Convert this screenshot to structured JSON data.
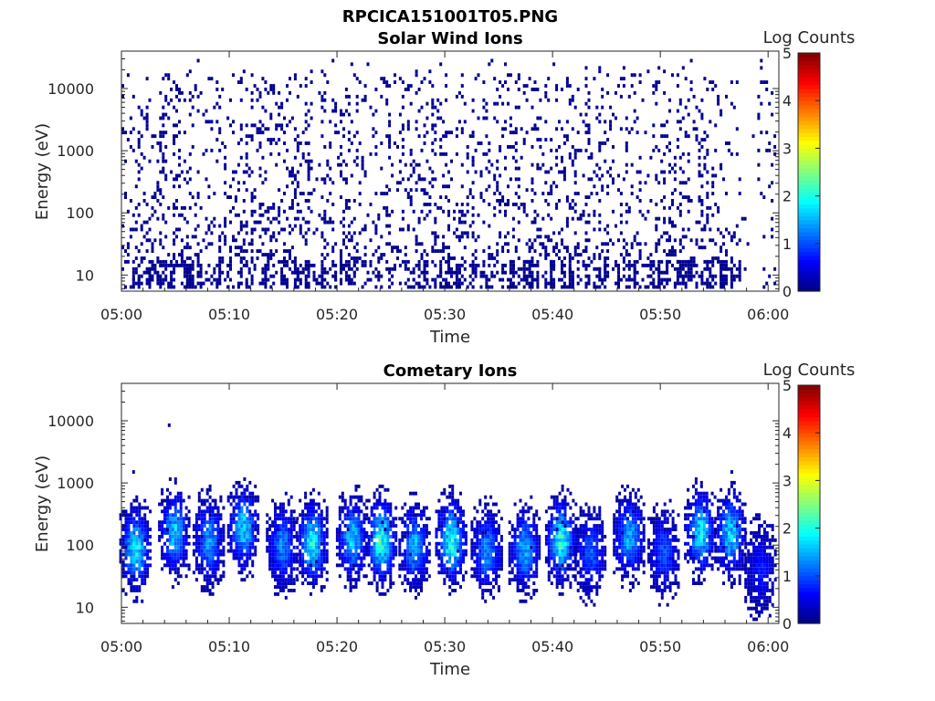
{
  "figure_title": "RPCICA151001T05.PNG",
  "chart_data": [
    {
      "type": "heatmap",
      "title": "Solar Wind Ions",
      "xlabel": "Time",
      "ylabel": "Energy (eV)",
      "x_ticks": [
        "05:00",
        "05:10",
        "05:20",
        "05:30",
        "05:40",
        "05:50",
        "06:00"
      ],
      "x_range_minutes": [
        0,
        61
      ],
      "y_scale": "log",
      "y_range": [
        5.5,
        40000
      ],
      "y_ticks": [
        10,
        100,
        1000,
        10000
      ],
      "y_tick_labels": [
        "10",
        "100",
        "1000",
        "10000"
      ],
      "colorbar": {
        "label": "Log Counts",
        "min": 0,
        "max": 5,
        "ticks": [
          "0",
          "1",
          "2",
          "3",
          "4",
          "5"
        ],
        "colormap": "jet"
      },
      "description_values": {
        "typical_log_counts": 0.1,
        "data_end_minute": 57.5,
        "sparse_energy_range": [
          6,
          25000
        ]
      }
    },
    {
      "type": "heatmap",
      "title": "Cometary Ions",
      "xlabel": "Time",
      "ylabel": "Energy (eV)",
      "x_ticks": [
        "05:00",
        "05:10",
        "05:20",
        "05:30",
        "05:40",
        "05:50",
        "06:00"
      ],
      "x_range_minutes": [
        0,
        61
      ],
      "y_scale": "log",
      "y_range": [
        5.5,
        40000
      ],
      "y_ticks": [
        10,
        100,
        1000,
        10000
      ],
      "y_tick_labels": [
        "10",
        "100",
        "1000",
        "10000"
      ],
      "colorbar": {
        "label": "Log Counts",
        "min": 0,
        "max": 5,
        "ticks": [
          "0",
          "1",
          "2",
          "3",
          "4",
          "5"
        ],
        "colormap": "jet"
      },
      "bursts": [
        {
          "t": 1.2,
          "peak_e": 80,
          "peak_c": 1.7
        },
        {
          "t": 4.8,
          "peak_e": 150,
          "peak_c": 1.5
        },
        {
          "t": 8.0,
          "peak_e": 110,
          "peak_c": 1.3
        },
        {
          "t": 11.2,
          "peak_e": 180,
          "peak_c": 1.6
        },
        {
          "t": 14.8,
          "peak_e": 90,
          "peak_c": 1.2
        },
        {
          "t": 17.6,
          "peak_e": 100,
          "peak_c": 1.8
        },
        {
          "t": 21.3,
          "peak_e": 120,
          "peak_c": 1.5
        },
        {
          "t": 24.0,
          "peak_e": 110,
          "peak_c": 2.0
        },
        {
          "t": 27.1,
          "peak_e": 90,
          "peak_c": 1.4
        },
        {
          "t": 30.5,
          "peak_e": 110,
          "peak_c": 2.0
        },
        {
          "t": 33.8,
          "peak_e": 75,
          "peak_c": 1.2
        },
        {
          "t": 37.3,
          "peak_e": 80,
          "peak_c": 1.4
        },
        {
          "t": 40.7,
          "peak_e": 110,
          "peak_c": 1.9
        },
        {
          "t": 43.4,
          "peak_e": 70,
          "peak_c": 1.0
        },
        {
          "t": 47.0,
          "peak_e": 130,
          "peak_c": 1.4
        },
        {
          "t": 50.2,
          "peak_e": 70,
          "peak_c": 0.9
        },
        {
          "t": 53.6,
          "peak_e": 150,
          "peak_c": 1.7
        },
        {
          "t": 56.4,
          "peak_e": 140,
          "peak_c": 1.6
        },
        {
          "t": 59.2,
          "peak_e": 40,
          "peak_c": 0.6
        }
      ]
    }
  ]
}
